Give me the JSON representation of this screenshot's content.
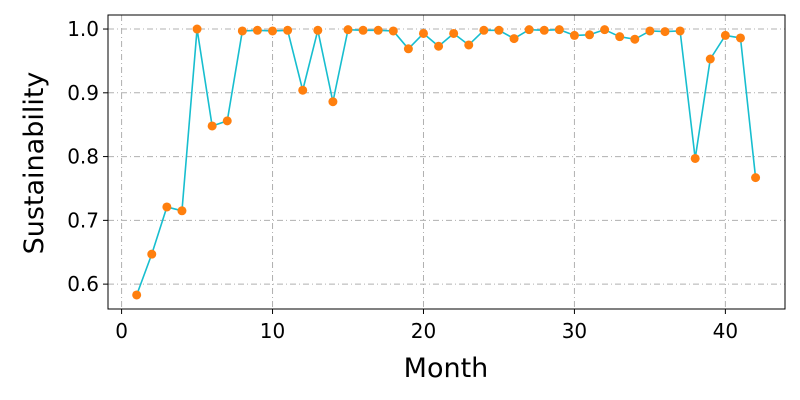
{
  "chart_data": {
    "type": "line",
    "title": "",
    "xlabel": "Month",
    "ylabel": "Sustainability",
    "xlim": [
      -0.9,
      43.95
    ],
    "ylim": [
      0.561,
      1.022
    ],
    "xticks": [
      0,
      10,
      20,
      30,
      40
    ],
    "yticks": [
      0.6,
      0.7,
      0.8,
      0.9,
      1.0
    ],
    "xtick_labels": [
      "0",
      "10",
      "20",
      "30",
      "40"
    ],
    "ytick_labels": [
      "0.6",
      "0.7",
      "0.8",
      "0.9",
      "1.0"
    ],
    "grid": true,
    "line_color": "#17becf",
    "marker_color": "#ff7f0e",
    "series": [
      {
        "x": [
          1,
          2,
          3,
          4,
          5,
          6,
          7,
          8,
          9,
          10,
          11,
          12,
          13,
          14,
          15,
          16,
          17,
          18,
          19,
          20,
          21,
          22,
          23,
          24,
          25,
          26,
          27,
          28,
          29,
          30,
          31,
          32,
          33,
          34,
          35,
          36,
          37,
          38,
          39,
          40,
          41,
          42
        ],
        "values": [
          0.583,
          0.647,
          0.721,
          0.715,
          1.0,
          0.848,
          0.856,
          0.997,
          0.998,
          0.997,
          0.998,
          0.904,
          0.998,
          0.886,
          0.999,
          0.998,
          0.998,
          0.997,
          0.969,
          0.993,
          0.973,
          0.993,
          0.975,
          0.998,
          0.998,
          0.985,
          0.999,
          0.998,
          0.999,
          0.99,
          0.991,
          0.999,
          0.988,
          0.984,
          0.997,
          0.996,
          0.997,
          0.797,
          0.953,
          0.99,
          0.986,
          0.767
        ]
      }
    ]
  }
}
